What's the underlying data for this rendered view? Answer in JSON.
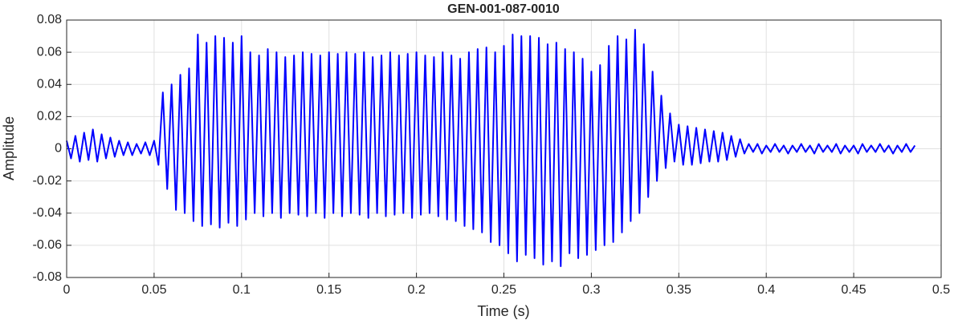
{
  "chart_data": {
    "type": "line",
    "title": "GEN-001-087-0010",
    "xlabel": "Time (s)",
    "ylabel": "Amplitude",
    "color": "#0000ff",
    "grid": true,
    "xlim": [
      0,
      0.5
    ],
    "ylim": [
      -0.08,
      0.08
    ],
    "xticks": [
      0,
      0.05,
      0.1,
      0.15,
      0.2,
      0.25,
      0.3,
      0.35,
      0.4,
      0.45,
      0.5
    ],
    "yticks": [
      -0.08,
      -0.06,
      -0.04,
      -0.02,
      0,
      0.02,
      0.04,
      0.06,
      0.08
    ],
    "x": [
      0,
      0.0025,
      0.005,
      0.0075,
      0.01,
      0.0125,
      0.015,
      0.0175,
      0.02,
      0.0225,
      0.025,
      0.0275,
      0.03,
      0.0325,
      0.035,
      0.0375,
      0.04,
      0.0425,
      0.045,
      0.0475,
      0.05,
      0.0525,
      0.055,
      0.0575,
      0.06,
      0.0625,
      0.065,
      0.0675,
      0.07,
      0.0725,
      0.075,
      0.0775,
      0.08,
      0.0825,
      0.085,
      0.0875,
      0.09,
      0.0925,
      0.095,
      0.0975,
      0.1,
      0.1025,
      0.105,
      0.1075,
      0.11,
      0.1125,
      0.115,
      0.1175,
      0.12,
      0.1225,
      0.125,
      0.1275,
      0.13,
      0.1325,
      0.135,
      0.1375,
      0.14,
      0.1425,
      0.145,
      0.1475,
      0.15,
      0.1525,
      0.155,
      0.1575,
      0.16,
      0.1625,
      0.165,
      0.1675,
      0.17,
      0.1725,
      0.175,
      0.1775,
      0.18,
      0.1825,
      0.185,
      0.1875,
      0.19,
      0.1925,
      0.195,
      0.1975,
      0.2,
      0.2025,
      0.205,
      0.2075,
      0.21,
      0.2125,
      0.215,
      0.2175,
      0.22,
      0.2225,
      0.225,
      0.2275,
      0.23,
      0.2325,
      0.235,
      0.2375,
      0.24,
      0.2425,
      0.245,
      0.2475,
      0.25,
      0.2525,
      0.255,
      0.2575,
      0.26,
      0.2625,
      0.265,
      0.2675,
      0.27,
      0.2725,
      0.275,
      0.2775,
      0.28,
      0.2825,
      0.285,
      0.2875,
      0.29,
      0.2925,
      0.295,
      0.2975,
      0.3,
      0.3025,
      0.305,
      0.3075,
      0.31,
      0.3125,
      0.315,
      0.3175,
      0.32,
      0.3225,
      0.325,
      0.3275,
      0.33,
      0.3325,
      0.335,
      0.3375,
      0.34,
      0.3425,
      0.345,
      0.3475,
      0.35,
      0.3525,
      0.355,
      0.3575,
      0.36,
      0.3625,
      0.365,
      0.3675,
      0.37,
      0.3725,
      0.375,
      0.3775,
      0.38,
      0.3825,
      0.385,
      0.3875,
      0.39,
      0.3925,
      0.395,
      0.3975,
      0.4,
      0.4025,
      0.405,
      0.4075,
      0.41,
      0.4125,
      0.415,
      0.4175,
      0.42,
      0.4225,
      0.425,
      0.4275,
      0.43,
      0.4325,
      0.435,
      0.4375,
      0.44,
      0.4425,
      0.445,
      0.4475,
      0.45,
      0.4525,
      0.455,
      0.4575,
      0.46,
      0.4625,
      0.465,
      0.4675,
      0.47,
      0.4725,
      0.475,
      0.4775,
      0.48,
      0.4825,
      0.485
    ],
    "values": [
      0.005,
      -0.006,
      0.008,
      -0.008,
      0.01,
      -0.007,
      0.012,
      -0.008,
      0.009,
      -0.006,
      0.007,
      -0.005,
      0.005,
      -0.004,
      0.004,
      -0.004,
      0.003,
      -0.003,
      0.004,
      -0.004,
      0.005,
      -0.01,
      0.035,
      -0.025,
      0.04,
      -0.038,
      0.046,
      -0.04,
      0.05,
      -0.045,
      0.071,
      -0.048,
      0.066,
      -0.047,
      0.07,
      -0.049,
      0.069,
      -0.046,
      0.066,
      -0.048,
      0.07,
      -0.044,
      0.06,
      -0.04,
      0.058,
      -0.042,
      0.062,
      -0.04,
      0.06,
      -0.043,
      0.057,
      -0.04,
      0.058,
      -0.041,
      0.06,
      -0.042,
      0.059,
      -0.04,
      0.058,
      -0.043,
      0.06,
      -0.04,
      0.059,
      -0.042,
      0.06,
      -0.04,
      0.059,
      -0.041,
      0.06,
      -0.043,
      0.057,
      -0.04,
      0.058,
      -0.042,
      0.06,
      -0.041,
      0.058,
      -0.04,
      0.059,
      -0.043,
      0.06,
      -0.041,
      0.058,
      -0.04,
      0.057,
      -0.042,
      0.06,
      -0.044,
      0.058,
      -0.045,
      0.056,
      -0.048,
      0.06,
      -0.05,
      0.062,
      -0.052,
      0.063,
      -0.058,
      0.06,
      -0.06,
      0.064,
      -0.065,
      0.071,
      -0.07,
      0.07,
      -0.066,
      0.07,
      -0.068,
      0.069,
      -0.072,
      0.065,
      -0.07,
      0.066,
      -0.073,
      0.062,
      -0.065,
      0.06,
      -0.068,
      0.056,
      -0.066,
      0.048,
      -0.063,
      0.052,
      -0.06,
      0.064,
      -0.058,
      0.07,
      -0.052,
      0.068,
      -0.045,
      0.074,
      -0.04,
      0.065,
      -0.03,
      0.048,
      -0.02,
      0.033,
      -0.012,
      0.022,
      -0.008,
      0.015,
      -0.01,
      0.014,
      -0.01,
      0.013,
      -0.009,
      0.012,
      -0.008,
      0.011,
      -0.008,
      0.01,
      -0.007,
      0.008,
      -0.005,
      0.006,
      -0.003,
      0.003,
      -0.002,
      0.003,
      -0.003,
      0.002,
      -0.002,
      0.003,
      -0.002,
      0.002,
      -0.003,
      0.002,
      -0.002,
      0.003,
      -0.002,
      0.002,
      -0.003,
      0.003,
      -0.002,
      0.002,
      -0.002,
      0.003,
      -0.003,
      0.002,
      -0.002,
      0.002,
      -0.003,
      0.003,
      -0.002,
      0.002,
      -0.002,
      0.003,
      -0.002,
      0.002,
      -0.003,
      0.002,
      -0.002,
      0.003,
      -0.002,
      0.002
    ]
  }
}
